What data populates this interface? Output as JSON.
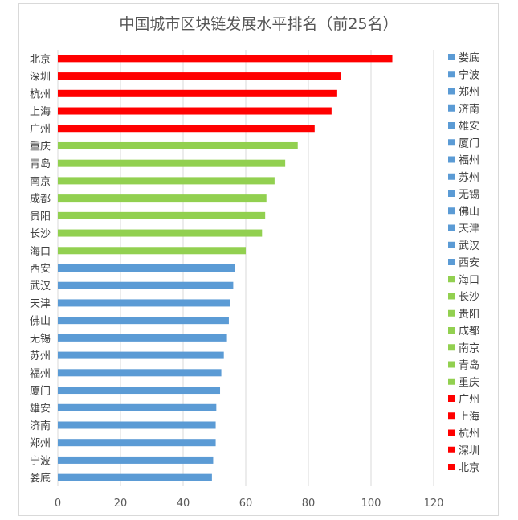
{
  "chart_data": {
    "type": "bar",
    "orientation": "horizontal",
    "title": "中国城市区块链发展水平排名（前25名）",
    "xlabel": "",
    "ylabel": "",
    "xlim": [
      0,
      120
    ],
    "xticks": [
      0,
      20,
      40,
      60,
      80,
      100,
      120
    ],
    "grid": "vertical",
    "legend": "right",
    "categories": [
      "北京",
      "深圳",
      "杭州",
      "上海",
      "广州",
      "重庆",
      "青岛",
      "南京",
      "成都",
      "贵阳",
      "长沙",
      "海口",
      "西安",
      "武汉",
      "天津",
      "佛山",
      "无锡",
      "苏州",
      "福州",
      "厦门",
      "雄安",
      "济南",
      "郑州",
      "宁波",
      "娄底"
    ],
    "values": [
      106.8,
      90.4,
      89.2,
      87.4,
      82.0,
      76.6,
      72.6,
      69.2,
      66.6,
      66.2,
      65.2,
      60.0,
      56.6,
      56.0,
      55.0,
      54.6,
      54.0,
      53.0,
      52.2,
      51.8,
      50.6,
      50.4,
      50.4,
      49.6,
      49.2
    ],
    "colors": [
      "#ff0000",
      "#ff0000",
      "#ff0000",
      "#ff0000",
      "#ff0000",
      "#92d050",
      "#92d050",
      "#92d050",
      "#92d050",
      "#92d050",
      "#92d050",
      "#92d050",
      "#5b9bd5",
      "#5b9bd5",
      "#5b9bd5",
      "#5b9bd5",
      "#5b9bd5",
      "#5b9bd5",
      "#5b9bd5",
      "#5b9bd5",
      "#5b9bd5",
      "#5b9bd5",
      "#5b9bd5",
      "#5b9bd5",
      "#5b9bd5"
    ],
    "legend_entries": [
      {
        "label": "娄底",
        "color": "#5b9bd5"
      },
      {
        "label": "宁波",
        "color": "#5b9bd5"
      },
      {
        "label": "郑州",
        "color": "#5b9bd5"
      },
      {
        "label": "济南",
        "color": "#5b9bd5"
      },
      {
        "label": "雄安",
        "color": "#5b9bd5"
      },
      {
        "label": "厦门",
        "color": "#5b9bd5"
      },
      {
        "label": "福州",
        "color": "#5b9bd5"
      },
      {
        "label": "苏州",
        "color": "#5b9bd5"
      },
      {
        "label": "无锡",
        "color": "#5b9bd5"
      },
      {
        "label": "佛山",
        "color": "#5b9bd5"
      },
      {
        "label": "天津",
        "color": "#5b9bd5"
      },
      {
        "label": "武汉",
        "color": "#5b9bd5"
      },
      {
        "label": "西安",
        "color": "#5b9bd5"
      },
      {
        "label": "海口",
        "color": "#92d050"
      },
      {
        "label": "长沙",
        "color": "#92d050"
      },
      {
        "label": "贵阳",
        "color": "#92d050"
      },
      {
        "label": "成都",
        "color": "#92d050"
      },
      {
        "label": "南京",
        "color": "#92d050"
      },
      {
        "label": "青岛",
        "color": "#92d050"
      },
      {
        "label": "重庆",
        "color": "#92d050"
      },
      {
        "label": "广州",
        "color": "#ff0000"
      },
      {
        "label": "上海",
        "color": "#ff0000"
      },
      {
        "label": "杭州",
        "color": "#ff0000"
      },
      {
        "label": "深圳",
        "color": "#ff0000"
      },
      {
        "label": "北京",
        "color": "#ff0000"
      }
    ]
  }
}
